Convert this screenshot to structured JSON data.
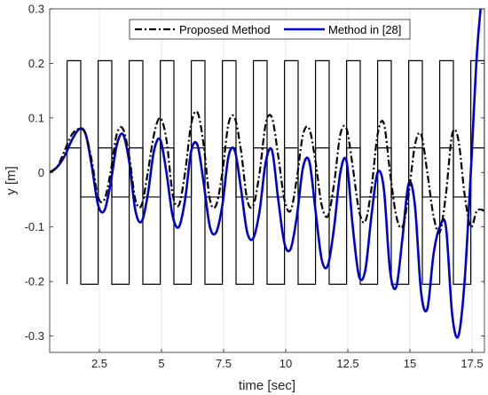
{
  "chart_data": {
    "type": "line",
    "title": "",
    "xlabel": "time [sec]",
    "ylabel": "y [m]",
    "xlim": [
      0.5,
      18
    ],
    "ylim": [
      -0.33,
      0.3
    ],
    "grid": "vertical",
    "legend_position": "top-center",
    "x_ticks": [
      2.5,
      5,
      7.5,
      10,
      12.5,
      15,
      17.5
    ],
    "x_tick_labels": [
      "2.5",
      "5",
      "7.5",
      "10",
      "12.5",
      "15",
      "17.5"
    ],
    "y_ticks": [
      -0.3,
      -0.2,
      -0.1,
      0,
      0.1,
      0.2,
      0.3
    ],
    "y_tick_labels": [
      "-0.3",
      "-0.2",
      "-0.1",
      "0",
      "0.1",
      "0.2",
      "0.3"
    ],
    "constraints": {
      "color": "#000000",
      "period": 1.25,
      "start": 1.2,
      "outer_bounds": [
        -0.205,
        0.205
      ],
      "inner_bounds": [
        -0.045,
        0.045
      ],
      "transitions": [
        1.2,
        1.75,
        2.45,
        3.0,
        3.7,
        4.25,
        4.95,
        5.5,
        6.2,
        6.75,
        7.45,
        8.0,
        8.7,
        9.25,
        9.95,
        10.5,
        11.2,
        11.75,
        12.45,
        13.0,
        13.7,
        14.25,
        14.95,
        15.5,
        16.2,
        16.75,
        17.45,
        18.0
      ]
    },
    "series": [
      {
        "name": "Proposed Method",
        "color": "#000000",
        "style": "dash-dot",
        "x": [
          0.5,
          0.8,
          1.1,
          1.4,
          1.7,
          1.95,
          2.2,
          2.45,
          2.7,
          2.95,
          3.2,
          3.45,
          3.7,
          3.95,
          4.2,
          4.45,
          4.7,
          4.95,
          5.2,
          5.45,
          5.7,
          5.95,
          6.2,
          6.45,
          6.7,
          6.95,
          7.2,
          7.45,
          7.7,
          7.95,
          8.2,
          8.45,
          8.7,
          8.95,
          9.2,
          9.45,
          9.7,
          9.95,
          10.2,
          10.45,
          10.7,
          10.95,
          11.2,
          11.45,
          11.7,
          11.95,
          12.2,
          12.45,
          12.7,
          12.95,
          13.2,
          13.45,
          13.7,
          13.95,
          14.2,
          14.45,
          14.7,
          14.95,
          15.2,
          15.45,
          15.7,
          15.95,
          16.2,
          16.45,
          16.7,
          16.95,
          17.2,
          17.45,
          17.7,
          18.0
        ],
        "y": [
          0.0,
          0.01,
          0.04,
          0.07,
          0.08,
          0.07,
          0.02,
          -0.045,
          -0.05,
          0.0,
          0.07,
          0.08,
          0.03,
          -0.05,
          -0.06,
          0.0,
          0.07,
          0.1,
          0.06,
          -0.04,
          -0.06,
          0.0,
          0.09,
          0.11,
          0.05,
          -0.05,
          -0.06,
          0.0,
          0.09,
          0.1,
          0.04,
          -0.05,
          -0.06,
          0.0,
          0.09,
          0.1,
          0.03,
          -0.05,
          -0.07,
          -0.01,
          0.07,
          0.08,
          0.02,
          -0.06,
          -0.08,
          -0.02,
          0.07,
          0.08,
          0.01,
          -0.07,
          -0.09,
          -0.03,
          0.07,
          0.09,
          0.0,
          -0.08,
          -0.1,
          -0.04,
          0.05,
          0.07,
          0.0,
          -0.08,
          -0.11,
          -0.04,
          0.07,
          0.06,
          -0.04,
          -0.1,
          -0.07,
          -0.07
        ]
      },
      {
        "name": "Method in [28]",
        "color": "#0000cd",
        "style": "solid",
        "x": [
          0.5,
          0.8,
          1.1,
          1.4,
          1.7,
          1.95,
          2.2,
          2.45,
          2.7,
          2.95,
          3.2,
          3.45,
          3.7,
          3.95,
          4.2,
          4.45,
          4.7,
          4.95,
          5.2,
          5.45,
          5.7,
          5.95,
          6.2,
          6.45,
          6.7,
          6.95,
          7.2,
          7.45,
          7.7,
          7.95,
          8.2,
          8.45,
          8.7,
          8.95,
          9.2,
          9.45,
          9.7,
          9.95,
          10.2,
          10.45,
          10.7,
          10.95,
          11.2,
          11.45,
          11.7,
          11.95,
          12.2,
          12.45,
          12.7,
          12.95,
          13.2,
          13.45,
          13.7,
          13.95,
          14.2,
          14.45,
          14.7,
          14.95,
          15.2,
          15.45,
          15.7,
          15.95,
          16.2,
          16.45,
          16.7,
          16.95,
          17.2,
          17.45,
          17.7,
          17.95
        ],
        "y": [
          0.0,
          0.01,
          0.03,
          0.06,
          0.08,
          0.07,
          0.01,
          -0.06,
          -0.07,
          -0.02,
          0.05,
          0.07,
          0.02,
          -0.07,
          -0.09,
          -0.04,
          0.04,
          0.06,
          0.0,
          -0.08,
          -0.1,
          -0.05,
          0.04,
          0.05,
          -0.02,
          -0.1,
          -0.11,
          -0.06,
          0.03,
          0.04,
          -0.03,
          -0.11,
          -0.12,
          -0.07,
          0.02,
          0.04,
          -0.05,
          -0.13,
          -0.14,
          -0.08,
          0.01,
          0.02,
          -0.07,
          -0.16,
          -0.17,
          -0.1,
          0.0,
          0.02,
          -0.1,
          -0.19,
          -0.18,
          -0.08,
          0.0,
          -0.03,
          -0.18,
          -0.21,
          -0.12,
          -0.02,
          -0.06,
          -0.22,
          -0.25,
          -0.15,
          -0.1,
          -0.1,
          -0.26,
          -0.3,
          -0.2,
          0.0,
          0.22,
          0.35
        ]
      }
    ]
  }
}
